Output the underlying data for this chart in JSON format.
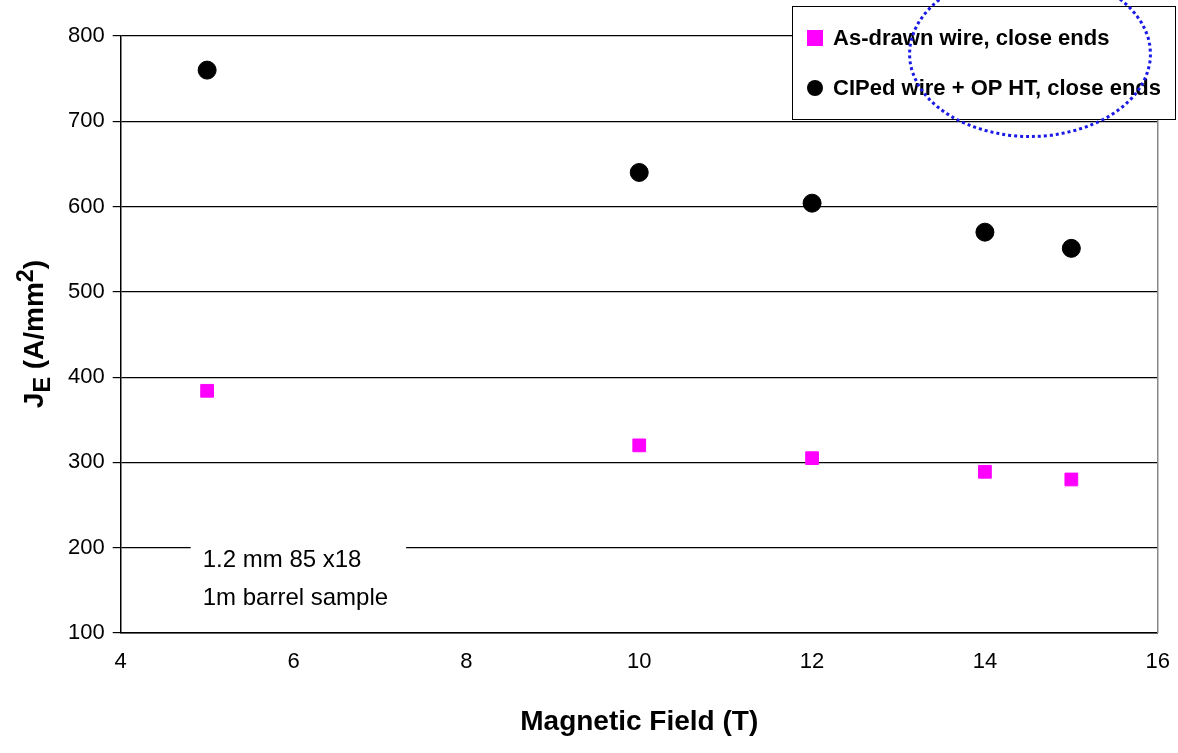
{
  "chart_data": {
    "type": "scatter",
    "xlabel": "Magnetic Field (T)",
    "ylabel": "J$_{E}$ (A/mm$^{2}$)",
    "xlim": [
      4,
      16
    ],
    "xticks": [
      4,
      6,
      8,
      10,
      12,
      14,
      16
    ],
    "ylim": [
      100,
      800
    ],
    "yticks": [
      100,
      200,
      300,
      400,
      500,
      600,
      700,
      800
    ],
    "grid": "y",
    "legend": "top right",
    "annotations": [
      "1.2 mm 85 x18",
      "1m barrel sample"
    ],
    "series": [
      {
        "name": "As-drawn wire, close ends",
        "color": "#ff00ff",
        "marker": "square",
        "x": [
          5,
          10,
          12,
          14,
          15
        ],
        "values": [
          384,
          320,
          305,
          289,
          280
        ]
      },
      {
        "name": "CIPed wire + OP HT, close ends",
        "color": "#000000",
        "marker": "circle",
        "x": [
          5,
          10,
          12,
          14,
          15
        ],
        "values": [
          760,
          640,
          604,
          570,
          551
        ]
      }
    ]
  }
}
